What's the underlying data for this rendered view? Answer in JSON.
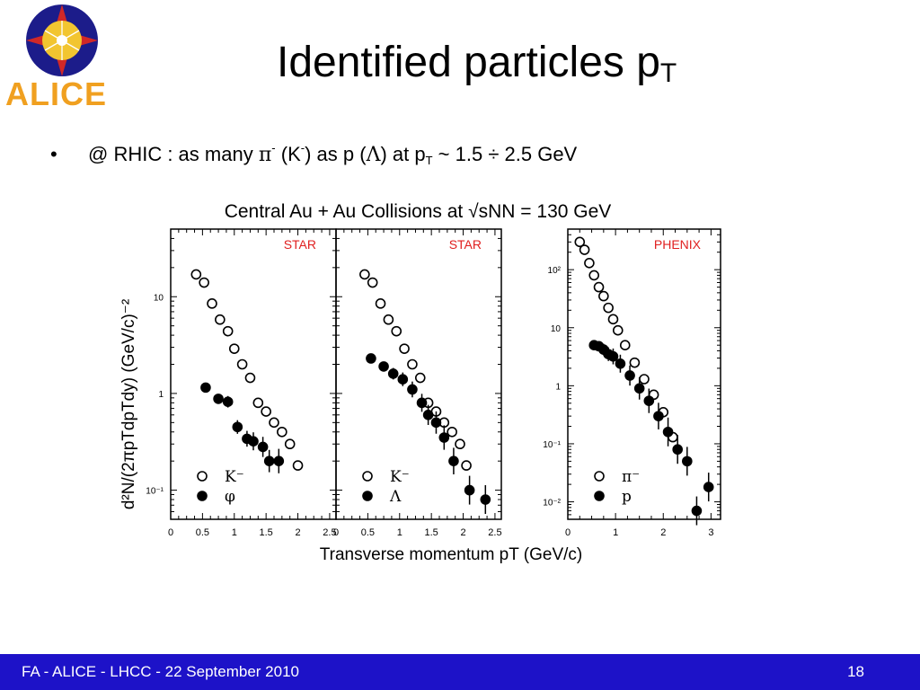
{
  "logo": {
    "text": "ALICE"
  },
  "slide": {
    "title_main": "Identified particles p",
    "title_sub": "T",
    "bullet": {
      "marker": "•",
      "part1": "@ RHIC : as many ",
      "pi": "π",
      "pi_sup": "-",
      "part2": " (K",
      "k_sup": "-",
      "part3": ") as p (",
      "lambda": "Λ",
      "part4": ") at p",
      "pt_sub": "T",
      "part5": " ~ 1.5 ÷ 2.5 GeV"
    }
  },
  "footer": {
    "text": "FA - ALICE - LHCC - 22 September 2010",
    "page": "18"
  },
  "colors": {
    "footer_bg": "#1d12c8",
    "experiment_label": "#e02020",
    "logo_orange": "#f0a020"
  },
  "chart_data": {
    "title": "Central Au + Au Collisions at √sNN = 130 GeV",
    "ylabel": "d²N/(2πpTdpTdy) (GeV/c)⁻²",
    "xlabel": "Transverse momentum pT (GeV/c)",
    "panels": [
      {
        "type": "scatter",
        "experiment": "STAR",
        "yscale": "log",
        "xlim": [
          0,
          2.6
        ],
        "ylim": [
          0.05,
          50
        ],
        "x_ticks": [
          "0",
          "0.5",
          "1",
          "1.5",
          "2",
          "2.5"
        ],
        "y_ticks": [
          {
            "v": 10,
            "label": "10"
          },
          {
            "v": 1,
            "label": "1"
          },
          {
            "v": 0.1,
            "label": "10⁻¹"
          }
        ],
        "series": [
          {
            "name": "K⁻",
            "marker": "open",
            "x": [
              0.4,
              0.525,
              0.65,
              0.775,
              0.9,
              1.0,
              1.125,
              1.25,
              1.375,
              1.5,
              1.625,
              1.75,
              1.875,
              2.0
            ],
            "y": [
              17,
              14,
              8.5,
              5.8,
              4.4,
              2.9,
              2.0,
              1.45,
              0.8,
              0.65,
              0.5,
              0.4,
              0.3,
              0.18
            ]
          },
          {
            "name": "φ",
            "marker": "filled",
            "x": [
              0.55,
              0.75,
              0.9,
              1.05,
              1.2,
              1.3,
              1.45,
              1.55,
              1.7
            ],
            "y": [
              1.15,
              0.88,
              0.82,
              0.45,
              0.34,
              0.32,
              0.28,
              0.2,
              0.2
            ]
          }
        ]
      },
      {
        "type": "scatter",
        "experiment": "STAR",
        "yscale": "log",
        "xlim": [
          0,
          2.6
        ],
        "ylim": [
          0.05,
          50
        ],
        "x_ticks": [
          "0",
          "0.5",
          "1",
          "1.5",
          "2",
          "2.5"
        ],
        "y_ticks": [],
        "series": [
          {
            "name": "K⁻",
            "marker": "open",
            "x": [
              0.45,
              0.575,
              0.7,
              0.825,
              0.95,
              1.075,
              1.2,
              1.325,
              1.45,
              1.575,
              1.7,
              1.825,
              1.95,
              2.05
            ],
            "y": [
              17,
              14,
              8.5,
              5.8,
              4.4,
              2.9,
              2.0,
              1.45,
              0.8,
              0.65,
              0.5,
              0.4,
              0.3,
              0.18
            ]
          },
          {
            "name": "Λ",
            "marker": "filled",
            "x": [
              0.55,
              0.75,
              0.9,
              1.05,
              1.2,
              1.35,
              1.45,
              1.575,
              1.7,
              1.85,
              2.1,
              2.35
            ],
            "y": [
              2.3,
              1.9,
              1.6,
              1.4,
              1.1,
              0.8,
              0.6,
              0.5,
              0.35,
              0.2,
              0.1,
              0.08
            ]
          }
        ]
      },
      {
        "type": "scatter",
        "experiment": "PHENIX",
        "yscale": "log",
        "xlim": [
          0,
          3.2
        ],
        "ylim": [
          0.005,
          500
        ],
        "x_ticks": [
          "0",
          "1",
          "2",
          "3"
        ],
        "y_ticks": [
          {
            "v": 100,
            "label": "10²"
          },
          {
            "v": 10,
            "label": "10"
          },
          {
            "v": 1,
            "label": "1"
          },
          {
            "v": 0.1,
            "label": "10⁻¹"
          },
          {
            "v": 0.01,
            "label": "10⁻²"
          }
        ],
        "series": [
          {
            "name": "π⁻",
            "marker": "open",
            "x": [
              0.25,
              0.35,
              0.45,
              0.55,
              0.65,
              0.75,
              0.85,
              0.95,
              1.05,
              1.2,
              1.4,
              1.6,
              1.8,
              2.0,
              2.2
            ],
            "y": [
              300,
              220,
              130,
              80,
              50,
              35,
              22,
              14,
              9,
              5,
              2.5,
              1.3,
              0.7,
              0.35,
              0.13
            ]
          },
          {
            "name": "p",
            "marker": "filled",
            "x": [
              0.55,
              0.65,
              0.75,
              0.85,
              0.95,
              1.1,
              1.3,
              1.5,
              1.7,
              1.9,
              2.1,
              2.3,
              2.5,
              2.7,
              2.95
            ],
            "y": [
              5,
              4.8,
              4.2,
              3.5,
              3.2,
              2.4,
              1.5,
              0.9,
              0.55,
              0.3,
              0.16,
              0.08,
              0.05,
              0.007,
              0.018
            ]
          }
        ]
      }
    ]
  }
}
